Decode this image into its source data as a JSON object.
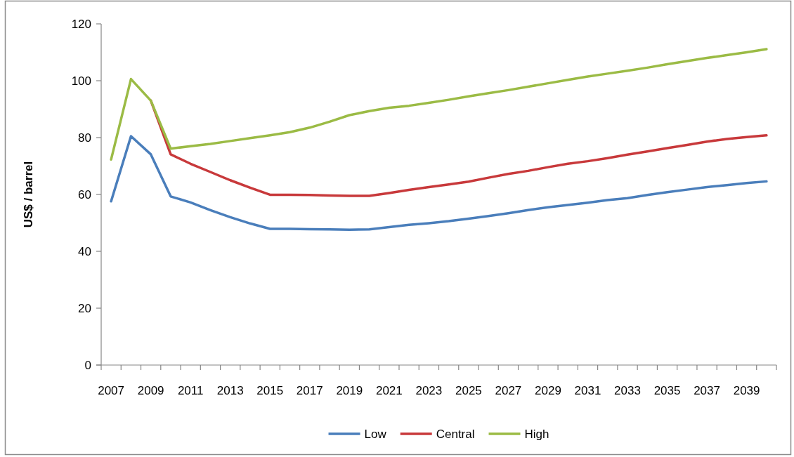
{
  "chart_data": {
    "type": "line",
    "ylabel": "US$ / barrel",
    "categories": [
      "2007",
      null,
      "2009",
      null,
      "2011",
      null,
      "2013",
      null,
      "2015",
      null,
      "2017",
      null,
      "2019",
      null,
      "2021",
      null,
      "2023",
      null,
      "2025",
      null,
      "2027",
      null,
      "2029",
      null,
      "2031",
      null,
      "2033",
      null,
      "2035",
      null,
      "2037",
      null,
      "2039",
      null
    ],
    "series": [
      {
        "name": "Low",
        "color": "#4a7ebb",
        "values": [
          57.6,
          80.5,
          74.1,
          59.3,
          57.2,
          54.5,
          52.0,
          49.8,
          47.9,
          47.9,
          47.8,
          47.7,
          47.6,
          47.7,
          48.5,
          49.3,
          49.9,
          50.6,
          51.5,
          52.4,
          53.4,
          54.5,
          55.5,
          56.3,
          57.1,
          58.0,
          58.7,
          59.8,
          60.8,
          61.7,
          62.6,
          63.3,
          64.0,
          64.6
        ]
      },
      {
        "name": "Central",
        "color": "#c8393b",
        "values": [
          null,
          null,
          93.0,
          74.1,
          70.8,
          67.9,
          65.0,
          62.4,
          59.9,
          59.9,
          59.8,
          59.6,
          59.5,
          59.5,
          60.5,
          61.6,
          62.6,
          63.5,
          64.5,
          65.9,
          67.2,
          68.3,
          69.6,
          70.8,
          71.7,
          72.8,
          74.0,
          75.1,
          76.3,
          77.4,
          78.6,
          79.5,
          80.2,
          80.8
        ]
      },
      {
        "name": "High",
        "color": "#9bbb45",
        "values": [
          72.3,
          100.6,
          93.0,
          76.1,
          77.0,
          77.8,
          78.8,
          79.8,
          80.8,
          81.9,
          83.5,
          85.6,
          87.9,
          89.3,
          90.5,
          91.2,
          92.2,
          93.3,
          94.5,
          95.6,
          96.7,
          97.9,
          99.1,
          100.3,
          101.5,
          102.5,
          103.5,
          104.6,
          105.8,
          106.9,
          108.0,
          109.0,
          110.0,
          111.1
        ]
      }
    ],
    "ylim": [
      0,
      120
    ],
    "yticks": [
      0,
      20,
      40,
      60,
      80,
      100,
      120
    ],
    "legend": "bottom"
  }
}
